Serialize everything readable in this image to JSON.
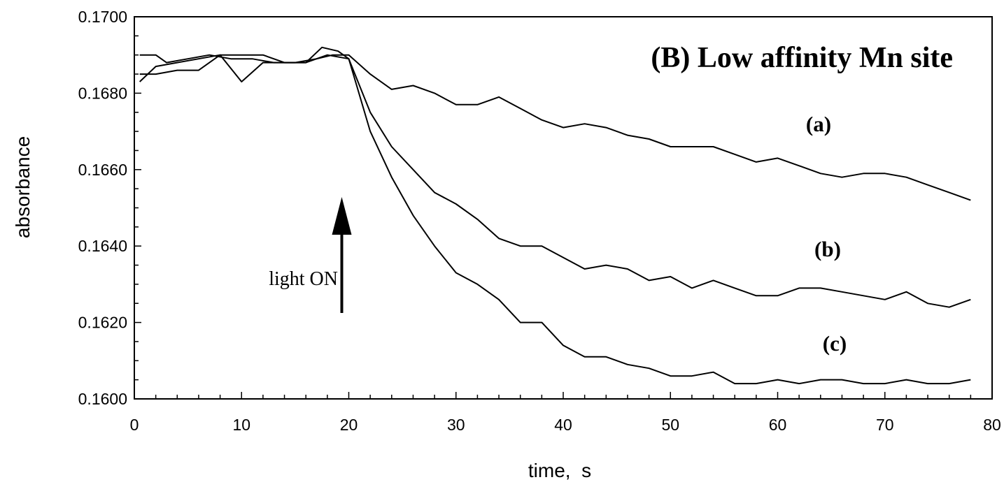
{
  "chart_data": {
    "type": "line",
    "title": "(B) Low affinity Mn site",
    "xlabel": "time,  s",
    "ylabel": "absorbance",
    "xlim": [
      0,
      80
    ],
    "ylim": [
      0.16,
      0.17
    ],
    "x_ticks": [
      "0",
      "10",
      "20",
      "30",
      "40",
      "50",
      "60",
      "70",
      "80"
    ],
    "y_ticks": [
      "0.1600",
      "0.1620",
      "0.1640",
      "0.1660",
      "0.1680",
      "0.1700"
    ],
    "grid": false,
    "annotation": {
      "text": "light ON",
      "x": 20
    },
    "series": [
      {
        "name": "(a)",
        "points": [
          [
            0.5,
            0.169
          ],
          [
            2,
            0.169
          ],
          [
            3,
            0.1688
          ],
          [
            5,
            0.1689
          ],
          [
            7,
            0.169
          ],
          [
            9,
            0.1689
          ],
          [
            11,
            0.1689
          ],
          [
            13,
            0.1688
          ],
          [
            15,
            0.1688
          ],
          [
            17,
            0.1689
          ],
          [
            18.5,
            0.169
          ],
          [
            20,
            0.169
          ],
          [
            22,
            0.1685
          ],
          [
            24,
            0.1681
          ],
          [
            26,
            0.1682
          ],
          [
            28,
            0.168
          ],
          [
            30,
            0.1677
          ],
          [
            32,
            0.1677
          ],
          [
            34,
            0.1679
          ],
          [
            36,
            0.1676
          ],
          [
            38,
            0.1673
          ],
          [
            40,
            0.1671
          ],
          [
            42,
            0.1672
          ],
          [
            44,
            0.1671
          ],
          [
            46,
            0.1669
          ],
          [
            48,
            0.1668
          ],
          [
            50,
            0.1666
          ],
          [
            52,
            0.1666
          ],
          [
            54,
            0.1666
          ],
          [
            56,
            0.1664
          ],
          [
            58,
            0.1662
          ],
          [
            60,
            0.1663
          ],
          [
            62,
            0.1661
          ],
          [
            64,
            0.1659
          ],
          [
            66,
            0.1658
          ],
          [
            68,
            0.1659
          ],
          [
            70,
            0.1659
          ],
          [
            72,
            0.1658
          ],
          [
            74,
            0.1656
          ],
          [
            76,
            0.1654
          ],
          [
            78,
            0.1652
          ]
        ]
      },
      {
        "name": "(b)",
        "points": [
          [
            0.5,
            0.1685
          ],
          [
            2,
            0.1685
          ],
          [
            4,
            0.1686
          ],
          [
            6,
            0.1686
          ],
          [
            8,
            0.169
          ],
          [
            10,
            0.169
          ],
          [
            12,
            0.169
          ],
          [
            14,
            0.1688
          ],
          [
            16,
            0.1688
          ],
          [
            18,
            0.169
          ],
          [
            20,
            0.1689
          ],
          [
            22,
            0.1675
          ],
          [
            24,
            0.1666
          ],
          [
            26,
            0.166
          ],
          [
            28,
            0.1654
          ],
          [
            30,
            0.1651
          ],
          [
            32,
            0.1647
          ],
          [
            34,
            0.1642
          ],
          [
            36,
            0.164
          ],
          [
            38,
            0.164
          ],
          [
            40,
            0.1637
          ],
          [
            42,
            0.1634
          ],
          [
            44,
            0.1635
          ],
          [
            46,
            0.1634
          ],
          [
            48,
            0.1631
          ],
          [
            50,
            0.1632
          ],
          [
            52,
            0.1629
          ],
          [
            54,
            0.1631
          ],
          [
            56,
            0.1629
          ],
          [
            58,
            0.1627
          ],
          [
            60,
            0.1627
          ],
          [
            62,
            0.1629
          ],
          [
            64,
            0.1629
          ],
          [
            66,
            0.1628
          ],
          [
            68,
            0.1627
          ],
          [
            70,
            0.1626
          ],
          [
            72,
            0.1628
          ],
          [
            74,
            0.1625
          ],
          [
            76,
            0.1624
          ],
          [
            78,
            0.1626
          ]
        ]
      },
      {
        "name": "(c)",
        "points": [
          [
            0.5,
            0.1683
          ],
          [
            2,
            0.1687
          ],
          [
            4,
            0.1688
          ],
          [
            6,
            0.1689
          ],
          [
            8,
            0.169
          ],
          [
            10,
            0.1683
          ],
          [
            12,
            0.1688
          ],
          [
            14,
            0.1688
          ],
          [
            16,
            0.1688
          ],
          [
            17.5,
            0.1692
          ],
          [
            19,
            0.1691
          ],
          [
            20,
            0.1689
          ],
          [
            22,
            0.167
          ],
          [
            24,
            0.1658
          ],
          [
            26,
            0.1648
          ],
          [
            28,
            0.164
          ],
          [
            30,
            0.1633
          ],
          [
            32,
            0.163
          ],
          [
            34,
            0.1626
          ],
          [
            36,
            0.162
          ],
          [
            38,
            0.162
          ],
          [
            40,
            0.1614
          ],
          [
            42,
            0.1611
          ],
          [
            44,
            0.1611
          ],
          [
            46,
            0.1609
          ],
          [
            48,
            0.1608
          ],
          [
            50,
            0.1606
          ],
          [
            52,
            0.1606
          ],
          [
            54,
            0.1607
          ],
          [
            56,
            0.1604
          ],
          [
            58,
            0.1604
          ],
          [
            60,
            0.1605
          ],
          [
            62,
            0.1604
          ],
          [
            64,
            0.1605
          ],
          [
            66,
            0.1605
          ],
          [
            68,
            0.1604
          ],
          [
            70,
            0.1604
          ],
          [
            72,
            0.1605
          ],
          [
            74,
            0.1604
          ],
          [
            76,
            0.1604
          ],
          [
            78,
            0.1605
          ]
        ]
      }
    ]
  }
}
